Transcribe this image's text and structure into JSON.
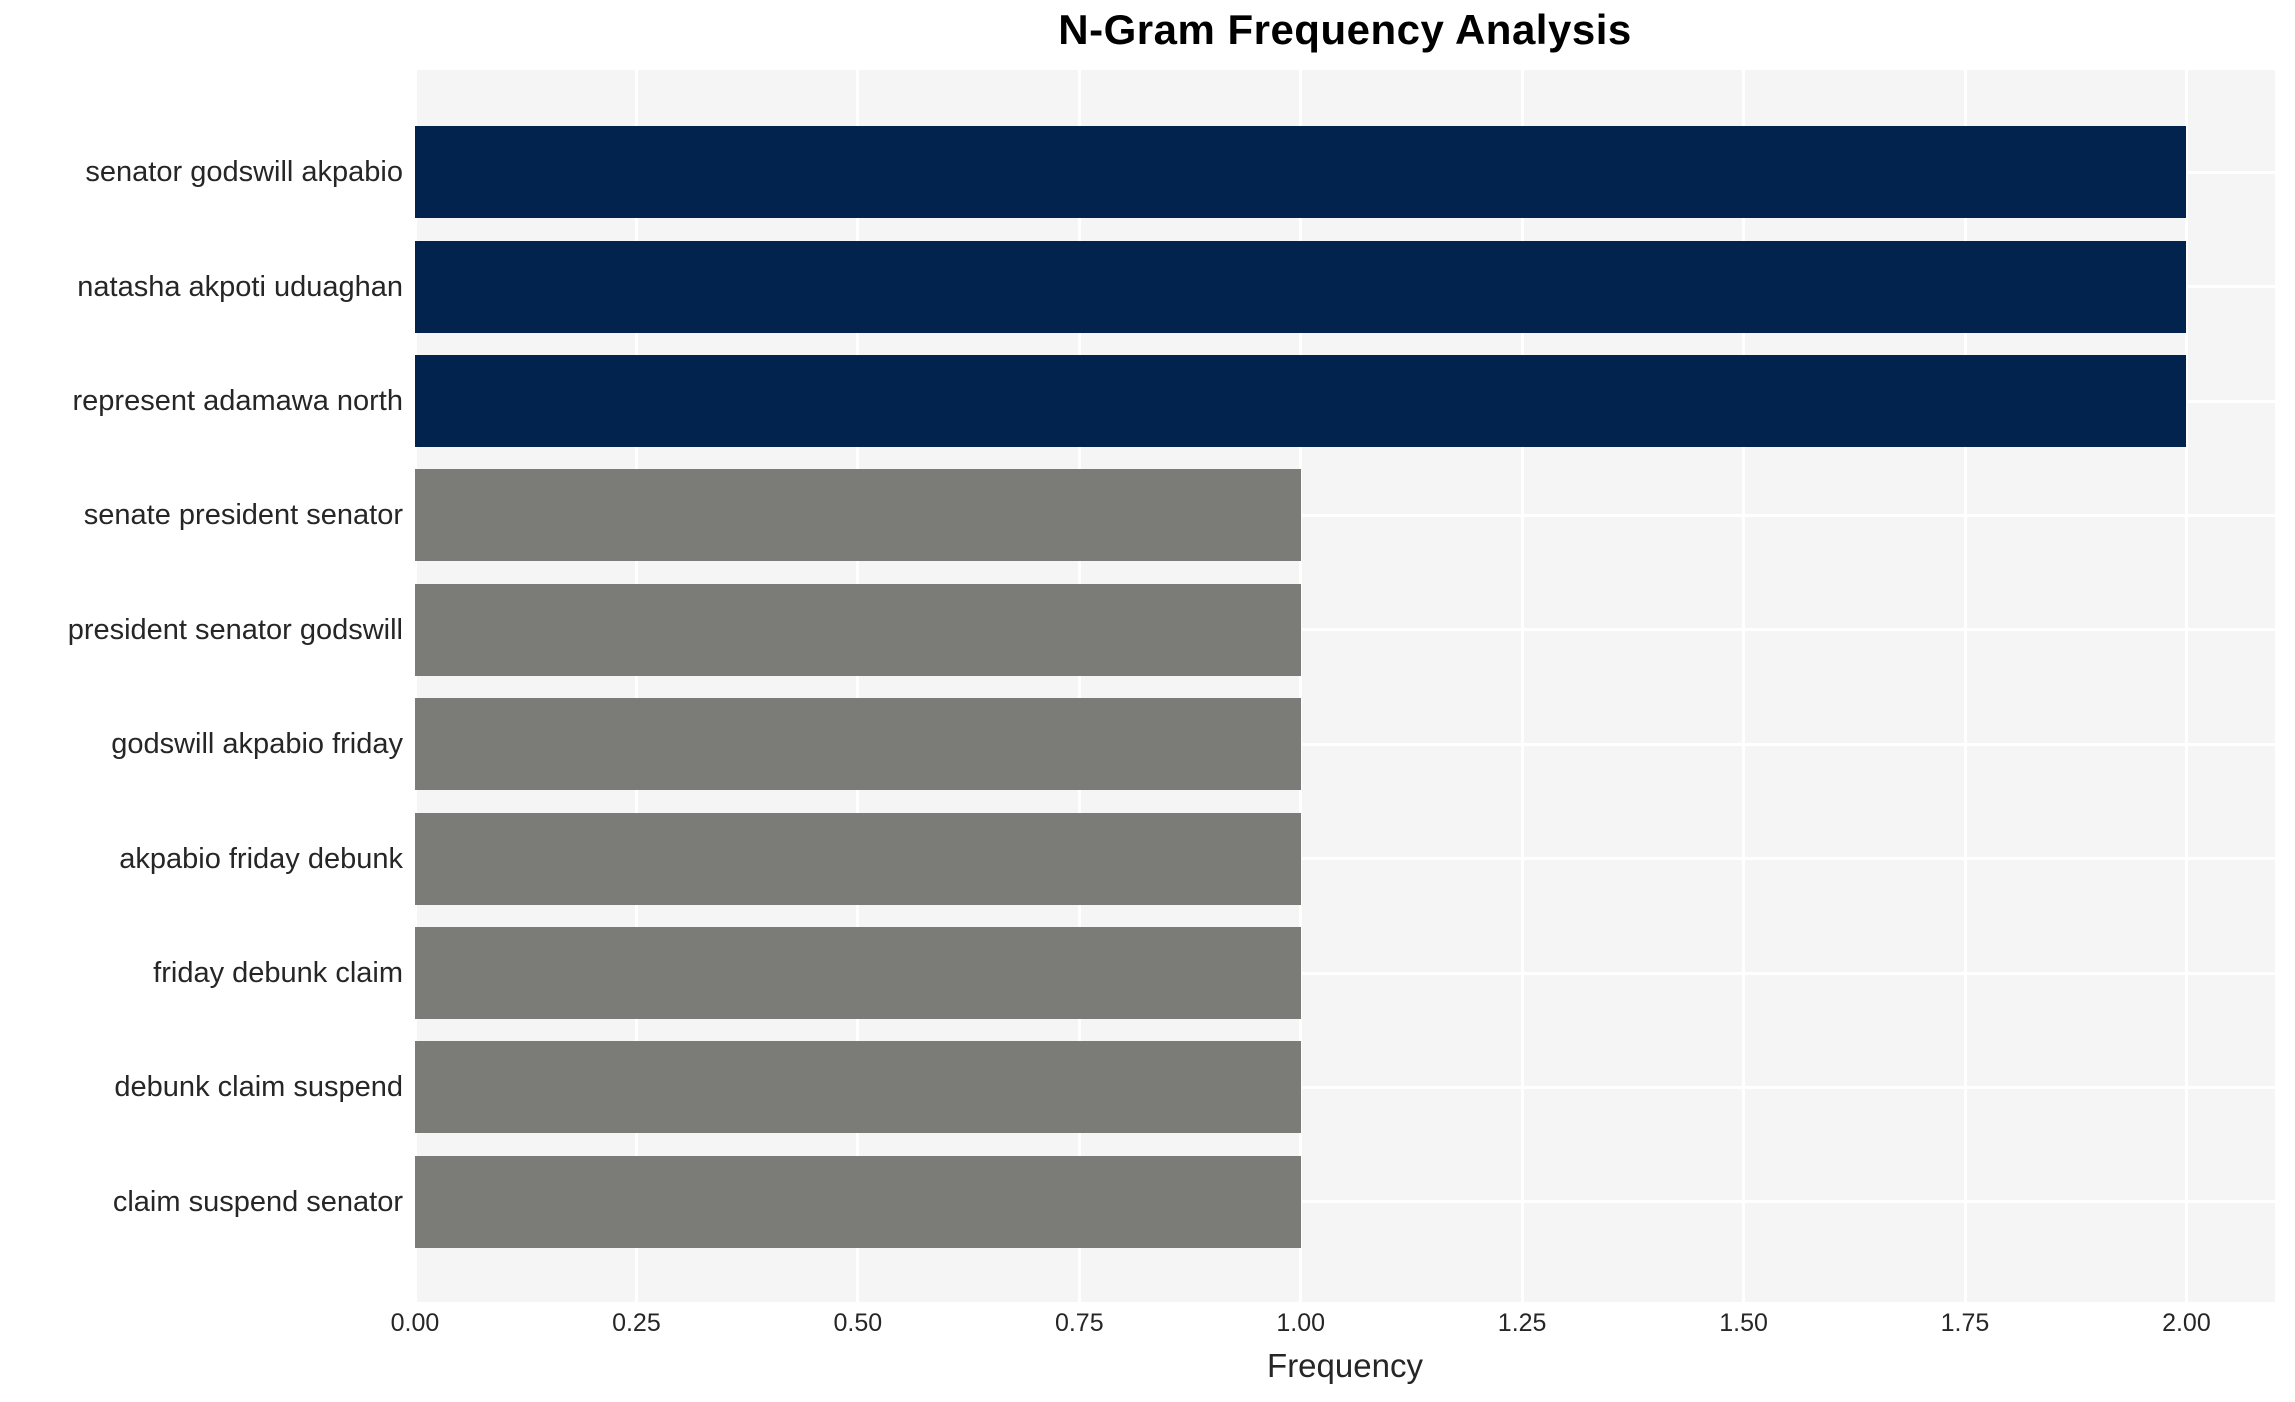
{
  "chart_data": {
    "type": "bar",
    "orientation": "horizontal",
    "title": "N-Gram Frequency Analysis",
    "xlabel": "Frequency",
    "ylabel": "",
    "categories": [
      "senator godswill akpabio",
      "natasha akpoti uduaghan",
      "represent adamawa north",
      "senate president senator",
      "president senator godswill",
      "godswill akpabio friday",
      "akpabio friday debunk",
      "friday debunk claim",
      "debunk claim suspend",
      "claim suspend senator"
    ],
    "values": [
      2,
      2,
      2,
      1,
      1,
      1,
      1,
      1,
      1,
      1
    ],
    "bar_colors": [
      "#02234e",
      "#02234e",
      "#02234e",
      "#7b7b78",
      "#7b7b78",
      "#7b7b78",
      "#7b7b78",
      "#7b7b78",
      "#7b7b78",
      "#7b7b78"
    ],
    "xlim": [
      0,
      2.1
    ],
    "xticks": [
      "0.00",
      "0.25",
      "0.50",
      "0.75",
      "1.00",
      "1.25",
      "1.50",
      "1.75",
      "2.00"
    ],
    "xtick_values": [
      0,
      0.25,
      0.5,
      0.75,
      1.0,
      1.25,
      1.5,
      1.75,
      2.0
    ],
    "grid": true,
    "legend": "none",
    "colors": {
      "high_freq_bar": "#02234e",
      "low_freq_bar": "#7b7b78",
      "plot_background": "#f5f5f5",
      "gridline": "#ffffff",
      "tick_text": "#262626",
      "title_text": "#000000"
    }
  }
}
